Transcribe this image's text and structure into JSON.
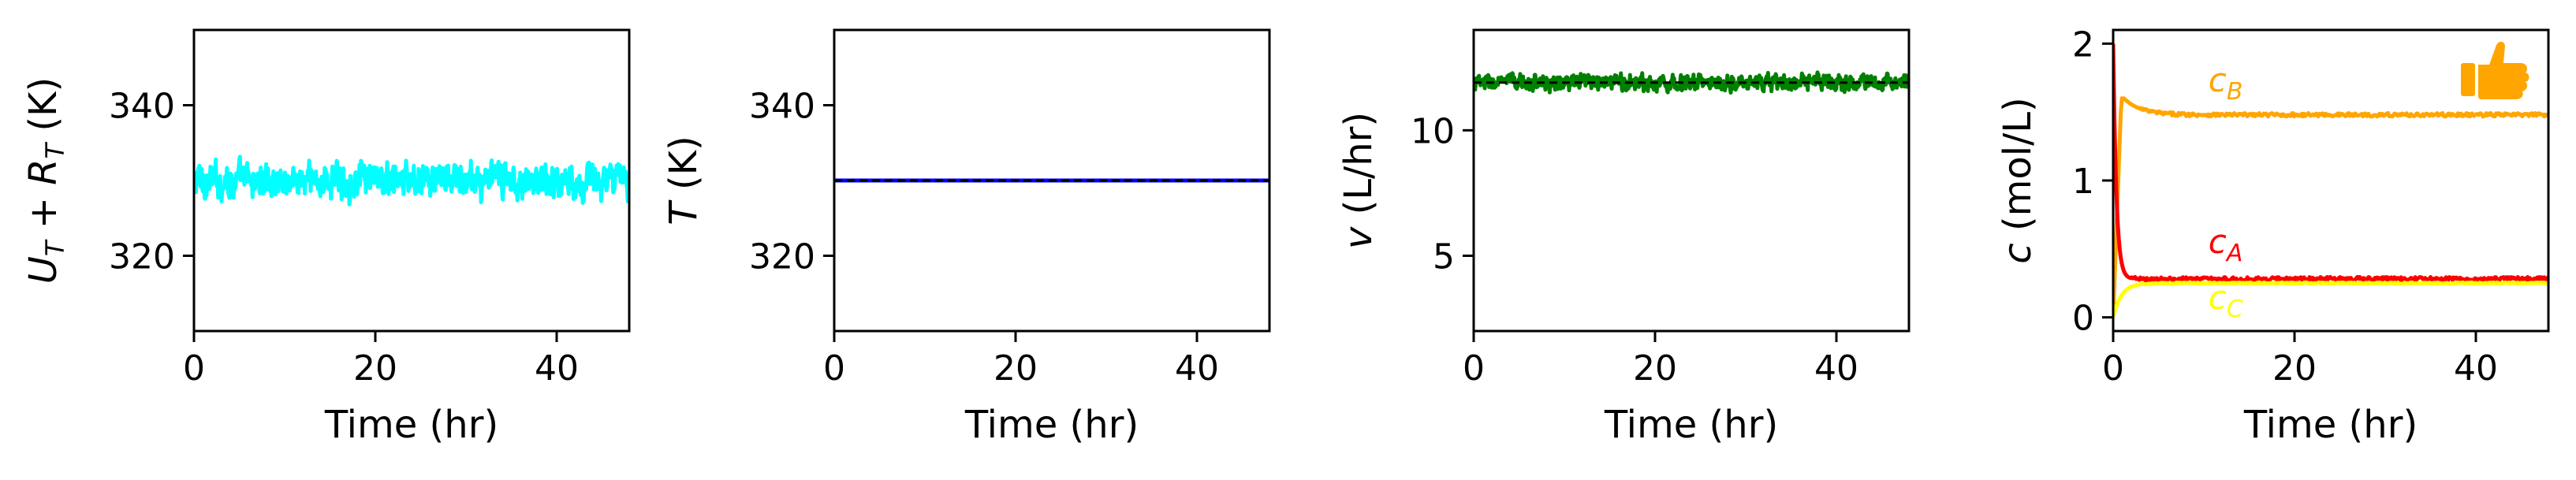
{
  "chart_data": [
    {
      "type": "line",
      "xlabel": "Time (hr)",
      "ylabel": {
        "prefix": "U",
        "sub1": "T",
        "mid": " + R",
        "sub2": "T",
        "suffix": " (K)"
      },
      "xlim": [
        0,
        48
      ],
      "ylim": [
        310,
        350
      ],
      "xticks": [
        0,
        20,
        40
      ],
      "yticks": [
        320,
        340
      ],
      "series": [
        {
          "color": "#00ffff",
          "style": "noisy",
          "mean": 330.0,
          "amplitude": 3.2,
          "x_range": [
            0,
            48
          ]
        }
      ]
    },
    {
      "type": "line",
      "xlabel": "Time (hr)",
      "ylabel": {
        "prefix": "T",
        "suffix": " (K)"
      },
      "xlim": [
        0,
        48
      ],
      "ylim": [
        310,
        350
      ],
      "xticks": [
        0,
        20,
        40
      ],
      "yticks": [
        320,
        340
      ],
      "series": [
        {
          "color": "#0000ff",
          "style": "flat",
          "value": 330.0,
          "x_range": [
            0,
            48
          ]
        },
        {
          "color": "#000000",
          "style": "flat-dashed",
          "value": 330.0,
          "x_range": [
            0,
            48
          ]
        }
      ]
    },
    {
      "type": "line",
      "xlabel": "Time (hr)",
      "ylabel": {
        "prefix": "v",
        "suffix": " (L/hr)"
      },
      "xlim": [
        0,
        48
      ],
      "ylim": [
        2,
        14
      ],
      "xticks": [
        0,
        20,
        40
      ],
      "yticks": [
        5,
        10
      ],
      "series": [
        {
          "color": "#008000",
          "style": "noisy",
          "mean": 11.9,
          "amplitude": 0.45,
          "x_range": [
            0,
            48
          ]
        },
        {
          "color": "#000000",
          "style": "flat-dashed",
          "value": 11.9,
          "x_range": [
            0,
            48
          ]
        }
      ]
    },
    {
      "type": "line",
      "xlabel": "Time (hr)",
      "ylabel": {
        "prefix": "c",
        "suffix": " (mol/L)"
      },
      "xlim": [
        0,
        48
      ],
      "ylim": [
        -0.1,
        2.1
      ],
      "xticks": [
        0,
        20,
        40
      ],
      "yticks": [
        0,
        1,
        2
      ],
      "series": [
        {
          "name": "c_B",
          "color": "#ffa500",
          "style": "transient",
          "start": 0.0,
          "peak": 1.6,
          "steady": 1.48,
          "x_range": [
            0,
            48
          ]
        },
        {
          "name": "c_A",
          "color": "#ff0000",
          "style": "decay",
          "start": 2.0,
          "steady": 0.28,
          "x_range": [
            0,
            48
          ]
        },
        {
          "name": "c_C",
          "color": "#ffff00",
          "style": "rise",
          "start": 0.0,
          "steady": 0.25,
          "x_range": [
            0,
            48
          ]
        }
      ],
      "annotations": [
        {
          "id": "cB",
          "base": "c",
          "sub": "B",
          "color": "#ffa500",
          "x": 10.5,
          "y": 1.65
        },
        {
          "id": "cA",
          "base": "c",
          "sub": "A",
          "color": "#ff0000",
          "x": 10.5,
          "y": 0.47
        },
        {
          "id": "cC",
          "base": "c",
          "sub": "C",
          "color": "#ffff00",
          "x": 10.5,
          "y": 0.06
        }
      ],
      "icon": {
        "name": "thumbs-up-icon",
        "color": "#ffa500",
        "x": 42,
        "y": 1.72
      }
    }
  ]
}
